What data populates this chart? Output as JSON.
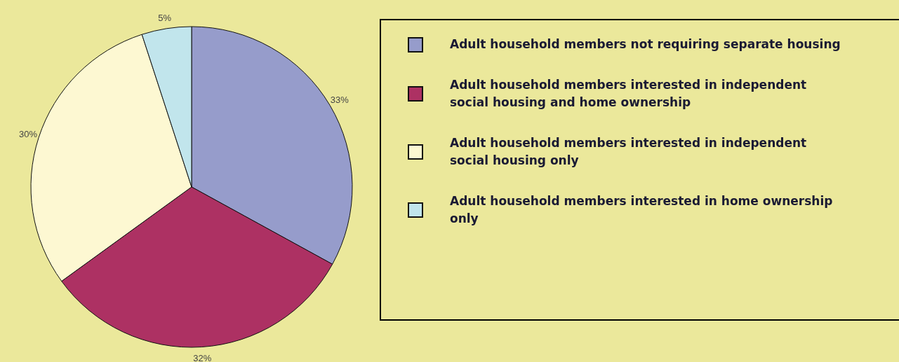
{
  "chart_data": {
    "type": "pie",
    "categories": [
      "Adult household members not requiring separate housing",
      "Adult household members interested in independent social housing and home ownership",
      "Adult household members interested in independent social housing only",
      "Adult household members interested in home ownership only"
    ],
    "values": [
      33,
      32,
      30,
      5
    ],
    "value_labels": [
      "33%",
      "32%",
      "30%",
      "5%"
    ],
    "colors": [
      "#969ccb",
      "#ad3163",
      "#fdf8d2",
      "#c1e5ec"
    ],
    "legend": "right"
  }
}
